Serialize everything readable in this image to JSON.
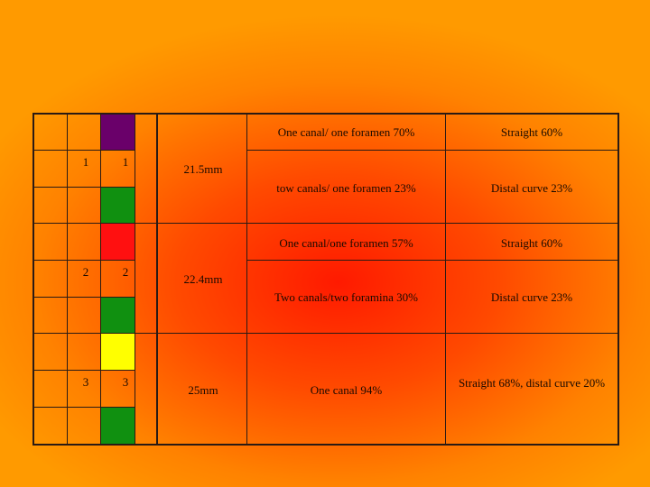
{
  "colors": {
    "purple": "#6a006a",
    "green": "#109010",
    "red": "#ff1010",
    "yellow": "#ffff00"
  },
  "groups": [
    {
      "num_a": "1",
      "num_b": "1",
      "length": "21.5mm",
      "canals": [
        "One canal/ one foramen 70%",
        "tow canals/ one foramen 23%"
      ],
      "curves": [
        "Straight 60%",
        "Distal curve 23%"
      ]
    },
    {
      "num_a": "2",
      "num_b": "2",
      "length": "22.4mm",
      "canals": [
        "One canal/one foramen 57%",
        "Two canals/two foramina 30%"
      ],
      "curves": [
        "Straight 60%",
        "Distal curve 23%"
      ]
    },
    {
      "num_a": "3",
      "num_b": "3",
      "length": "25mm",
      "canals": [
        "One canal 94%"
      ],
      "curves": [
        "Straight 68%, distal curve 20%"
      ]
    }
  ]
}
